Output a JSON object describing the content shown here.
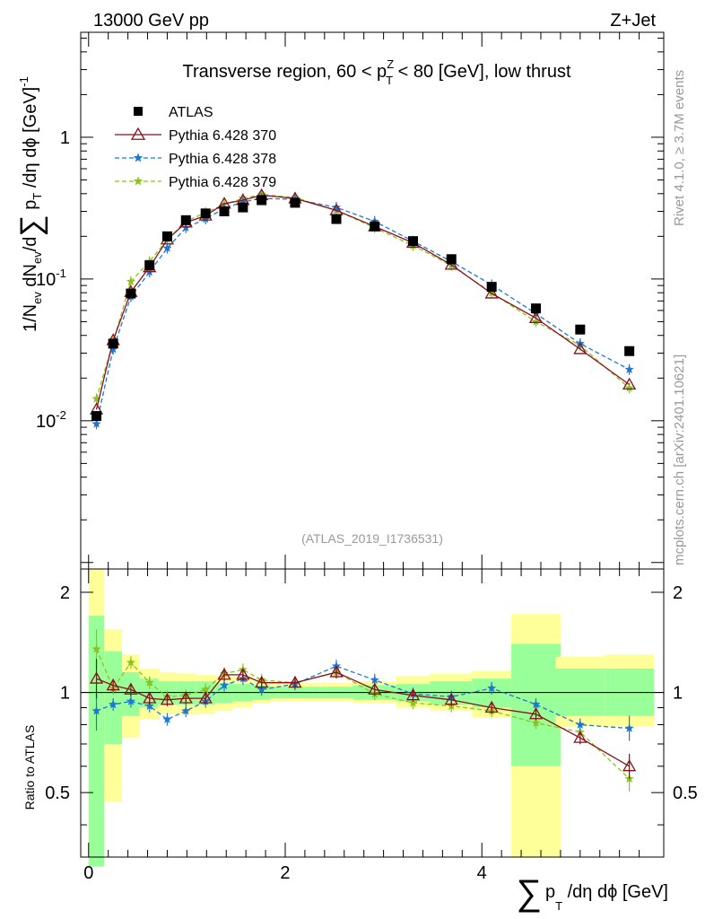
{
  "header": {
    "left": "13000 GeV pp",
    "right": "Z+Jet"
  },
  "title": {
    "main": "Transverse region, 60 < p",
    "sup": "Z",
    "sub": "T",
    "tail": " < 80 [GeV], low thrust"
  },
  "analysis_id": "(ATLAS_2019_I1736531)",
  "side_labels": {
    "rivet": "Rivet 4.1.0, ≥ 3.7M events",
    "mcplots": "mcplots.cern.ch [arXiv:2401.10621]"
  },
  "y_main_label": {
    "part1": "1/N",
    "sub1": "ev",
    "part2": " dN",
    "sub2": "ev",
    "part3": "/d",
    "sum": "∑",
    "part4": " p",
    "sub4": "T",
    "part5": " /dη dϕ  [GeV]",
    "sup5": "-1"
  },
  "x_label": {
    "sum": "∑",
    "p": "p",
    "sub": "T",
    "rest": " /dη dϕ [GeV]"
  },
  "ratio_label": "Ratio to ATLAS",
  "legend": [
    {
      "label": "ATLAS"
    },
    {
      "label": "Pythia 6.428 370"
    },
    {
      "label": "Pythia 6.428 378"
    },
    {
      "label": "Pythia 6.428 379"
    }
  ],
  "main_ticks": [
    {
      "label": "10",
      "exp": "-2"
    },
    {
      "label": "10",
      "exp": "-1"
    },
    {
      "label": "1",
      "exp": ""
    }
  ],
  "ratio_ticks": [
    "0.5",
    "1",
    "2"
  ],
  "x_ticks": [
    "0",
    "2",
    "4"
  ],
  "chart_data": {
    "type": "scatter",
    "title": "Transverse region, 60 < pT^Z < 80 [GeV], low thrust",
    "xlabel": "∑ pT /dη dϕ [GeV]",
    "ylabel": "1/Nev dNev/d∑ pT /dη dϕ [GeV]^-1",
    "yscale": "log",
    "xlim": [
      -0.08,
      5.85
    ],
    "ylim": [
      0.0009,
      5.5
    ],
    "ratio_ylabel": "Ratio to ATLAS",
    "ratio_ylim": [
      0.32,
      2.35
    ],
    "colors": {
      "atlas": "#000000",
      "p370": "#8b0f1a",
      "p378": "#1f77d4",
      "p379": "#8ec21d",
      "band_inner": "#99ff99",
      "band_outer": "#ffff99"
    },
    "x": [
      0.08,
      0.25,
      0.43,
      0.62,
      0.8,
      0.99,
      1.19,
      1.38,
      1.57,
      1.76,
      2.1,
      2.52,
      2.91,
      3.3,
      3.69,
      4.1,
      4.55,
      5.0,
      5.5
    ],
    "xerr": [
      0.08,
      0.09,
      0.09,
      0.1,
      0.09,
      0.1,
      0.1,
      0.09,
      0.1,
      0.09,
      0.25,
      0.17,
      0.22,
      0.17,
      0.22,
      0.2,
      0.25,
      0.25,
      0.25
    ],
    "series": [
      {
        "name": "ATLAS",
        "key": "atlas",
        "values": [
          0.0108,
          0.035,
          0.079,
          0.125,
          0.2,
          0.26,
          0.29,
          0.3,
          0.32,
          0.36,
          0.345,
          0.265,
          0.235,
          0.185,
          0.138,
          0.088,
          0.062,
          0.044,
          0.031
        ]
      },
      {
        "name": "Pythia 6.428 370",
        "key": "p370",
        "values": [
          0.012,
          0.037,
          0.081,
          0.121,
          0.19,
          0.25,
          0.28,
          0.34,
          0.36,
          0.39,
          0.37,
          0.305,
          0.235,
          0.18,
          0.126,
          0.079,
          0.053,
          0.032,
          0.018
        ]
      },
      {
        "name": "Pythia 6.428 378",
        "key": "p378",
        "values": [
          0.0095,
          0.032,
          0.075,
          0.112,
          0.165,
          0.23,
          0.265,
          0.315,
          0.35,
          0.37,
          0.365,
          0.32,
          0.255,
          0.185,
          0.133,
          0.091,
          0.057,
          0.035,
          0.023
        ]
      },
      {
        "name": "Pythia 6.428 379",
        "key": "p379",
        "values": [
          0.0143,
          0.036,
          0.096,
          0.133,
          0.19,
          0.255,
          0.295,
          0.335,
          0.37,
          0.395,
          0.375,
          0.305,
          0.23,
          0.172,
          0.125,
          0.08,
          0.05,
          0.034,
          0.017
        ]
      }
    ],
    "ratio": {
      "p370": [
        1.1,
        1.05,
        1.02,
        0.96,
        0.95,
        0.96,
        0.96,
        1.13,
        1.13,
        1.07,
        1.07,
        1.15,
        1.02,
        0.98,
        0.95,
        0.9,
        0.86,
        0.73,
        0.6
      ],
      "p378": [
        0.88,
        0.92,
        0.94,
        0.91,
        0.83,
        0.88,
        0.94,
        1.05,
        1.1,
        1.02,
        1.06,
        1.2,
        1.09,
        0.99,
        0.97,
        1.03,
        0.92,
        0.8,
        0.78
      ],
      "p379": [
        1.35,
        1.03,
        1.23,
        1.07,
        0.97,
        0.98,
        1.02,
        1.14,
        1.17,
        1.09,
        1.07,
        1.15,
        0.99,
        0.93,
        0.91,
        0.88,
        0.81,
        0.76,
        0.55
      ],
      "band_inner": [
        [
          0.3,
          1.7
        ],
        [
          0.7,
          1.33
        ],
        [
          0.85,
          1.15
        ],
        [
          0.9,
          1.1
        ],
        [
          0.92,
          1.08
        ],
        [
          0.92,
          1.08
        ],
        [
          0.92,
          1.08
        ],
        [
          0.93,
          1.07
        ],
        [
          0.94,
          1.06
        ],
        [
          0.95,
          1.05
        ],
        [
          0.96,
          1.04
        ],
        [
          0.96,
          1.04
        ],
        [
          0.95,
          1.05
        ],
        [
          0.94,
          1.06
        ],
        [
          0.92,
          1.08
        ],
        [
          0.9,
          1.1
        ],
        [
          0.6,
          1.4
        ],
        [
          0.85,
          1.18
        ],
        [
          0.85,
          1.18
        ]
      ],
      "band_outer": [
        [
          0.3,
          2.35
        ],
        [
          0.47,
          1.55
        ],
        [
          0.73,
          1.3
        ],
        [
          0.83,
          1.18
        ],
        [
          0.86,
          1.15
        ],
        [
          0.86,
          1.14
        ],
        [
          0.86,
          1.13
        ],
        [
          0.88,
          1.12
        ],
        [
          0.9,
          1.12
        ],
        [
          0.93,
          1.08
        ],
        [
          0.94,
          1.07
        ],
        [
          0.94,
          1.07
        ],
        [
          0.93,
          1.08
        ],
        [
          0.9,
          1.12
        ],
        [
          0.88,
          1.14
        ],
        [
          0.84,
          1.16
        ],
        [
          0.32,
          1.72
        ],
        [
          0.79,
          1.28
        ],
        [
          0.79,
          1.3
        ]
      ]
    }
  }
}
